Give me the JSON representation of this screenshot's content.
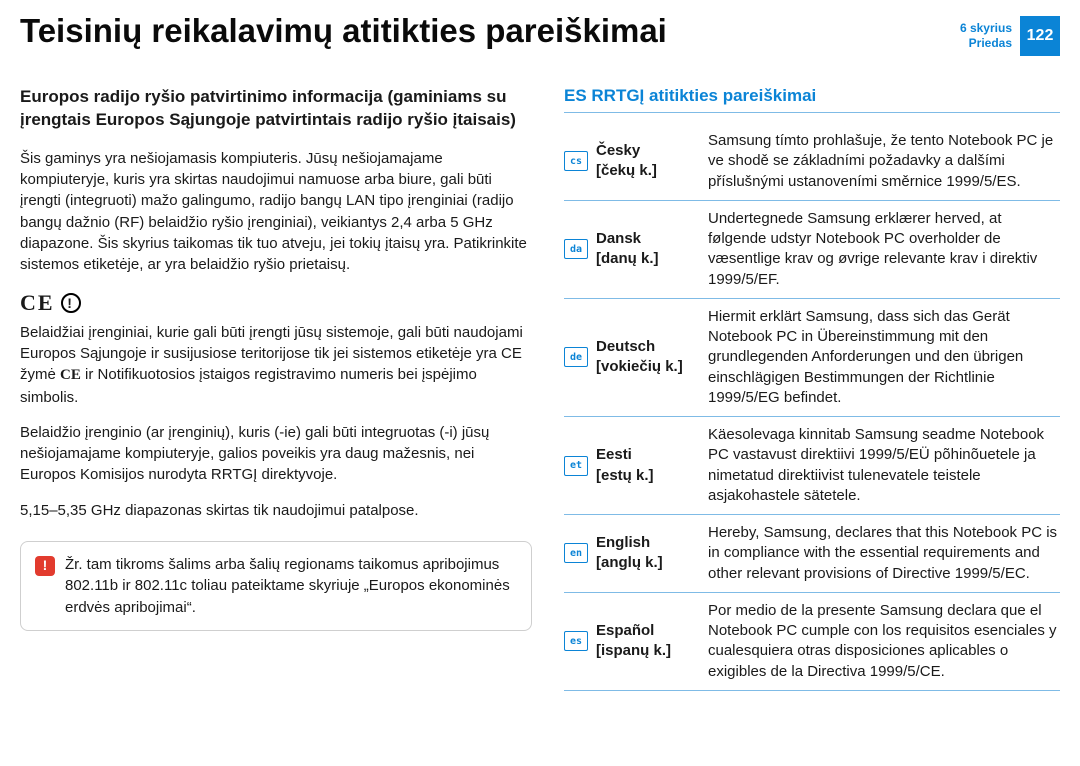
{
  "header": {
    "title": "Teisinių reikalavimų atitikties pareiškimai",
    "chapter": "6 skyrius",
    "appendix": "Priedas",
    "page_number": "122"
  },
  "left": {
    "heading": "Europos radijo ryšio patvirtinimo informacija (gaminiams su įrengtais Europos Sąjungoje patvirtintais radijo ryšio įtaisais)",
    "p1": "Šis gaminys yra nešiojamasis kompiuteris. Jūsų nešiojamajame kompiuteryje, kuris yra skirtas naudojimui namuose arba biure, gali būti įrengti (integruoti) mažo galingumo, radijo bangų LAN tipo įrenginiai (radijo bangų dažnio (RF) belaidžio ryšio įrenginiai), veikiantys 2,4 arba 5 GHz diapazone. Šis skyrius taikomas tik tuo atveju, jei tokių įtaisų yra. Patikrinkite sistemos etiketėje, ar yra belaidžio ryšio prietaisų.",
    "ce_mark": "CE",
    "p2a": "Belaidžiai įrenginiai, kurie gali būti įrengti jūsų sistemoje, gali būti naudojami Europos Sąjungoje ir susijusiose teritorijose tik jei sistemos etiketėje yra CE žymė ",
    "p2b": " ir Notifikuotosios įstaigos registravimo numeris bei įspėjimo simbolis.",
    "p3": "Belaidžio įrenginio (ar įrenginių), kuris (-ie) gali būti integruotas (-i) jūsų nešiojamajame kompiuteryje, galios poveikis yra daug mažesnis, nei Europos Komisijos nurodyta RRTGĮ direktyvoje.",
    "p4": "5,15–5,35 GHz diapazonas skirtas tik naudojimui patalpose.",
    "note": "Žr. tam tikroms šalims arba šalių regionams taikomus apribojimus 802.11b ir 802.11c toliau pateiktame skyriuje „Europos ekonominės erdvės apribojimai“."
  },
  "right": {
    "title": "ES RRTGĮ atitikties pareiškimai",
    "rows": [
      {
        "code": "cs",
        "label": "Česky\n[čekų k.]",
        "text": "Samsung tímto prohlašuje, že tento Notebook PC je ve shodě se základními požadavky a dalšími příslušnými ustanoveními směrnice 1999/5/ES."
      },
      {
        "code": "da",
        "label": "Dansk\n[danų k.]",
        "text": "Undertegnede Samsung erklærer herved, at følgende udstyr Notebook PC overholder de væsentlige krav og øvrige relevante krav i direktiv 1999/5/EF."
      },
      {
        "code": "de",
        "label": "Deutsch\n[vokiečių k.]",
        "text": "Hiermit erklärt Samsung, dass sich das Gerät Notebook PC in Übereinstimmung mit den grundlegenden Anforderungen und den übrigen einschlägigen Bestimmungen der Richtlinie 1999/5/EG befindet."
      },
      {
        "code": "et",
        "label": "Eesti\n[estų k.]",
        "text": "Käesolevaga kinnitab Samsung seadme Notebook PC vastavust direktiivi 1999/5/EÜ põhinõuetele ja nimetatud direktiivist tulenevatele teistele asjakohastele sätetele."
      },
      {
        "code": "en",
        "label": "English\n[anglų k.]",
        "text": "Hereby, Samsung, declares that this Notebook PC is in compliance with the essential requirements and other relevant provisions of Directive 1999/5/EC."
      },
      {
        "code": "es",
        "label": "Español\n[ispanų k.]",
        "text": "Por medio de la presente Samsung declara que el Notebook PC cumple con los requisitos esenciales y cualesquiera otras disposiciones aplicables o exigibles de la Directiva 1999/5/CE."
      }
    ]
  }
}
